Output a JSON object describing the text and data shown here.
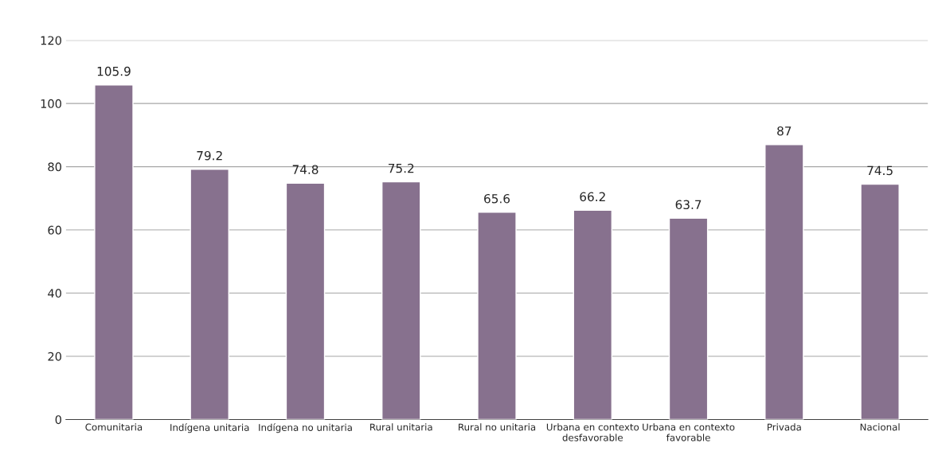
{
  "chart_data": {
    "type": "bar",
    "categories": [
      "Comunitaria",
      "Indígena unitaria",
      "Indígena no unitaria",
      "Rural unitaria",
      "Rural no unitaria",
      "Urbana en contexto\ndesfavorable",
      "Urbana en contexto\nfavorable",
      "Privada",
      "Nacional"
    ],
    "values": [
      105.9,
      79.2,
      74.8,
      75.2,
      65.6,
      66.2,
      63.7,
      87,
      74.5
    ],
    "color": "#87718e",
    "ylim": [
      0,
      120
    ],
    "yticks": [
      0,
      20,
      40,
      60,
      80,
      100,
      120
    ],
    "grid": "y",
    "data_labels": true
  }
}
